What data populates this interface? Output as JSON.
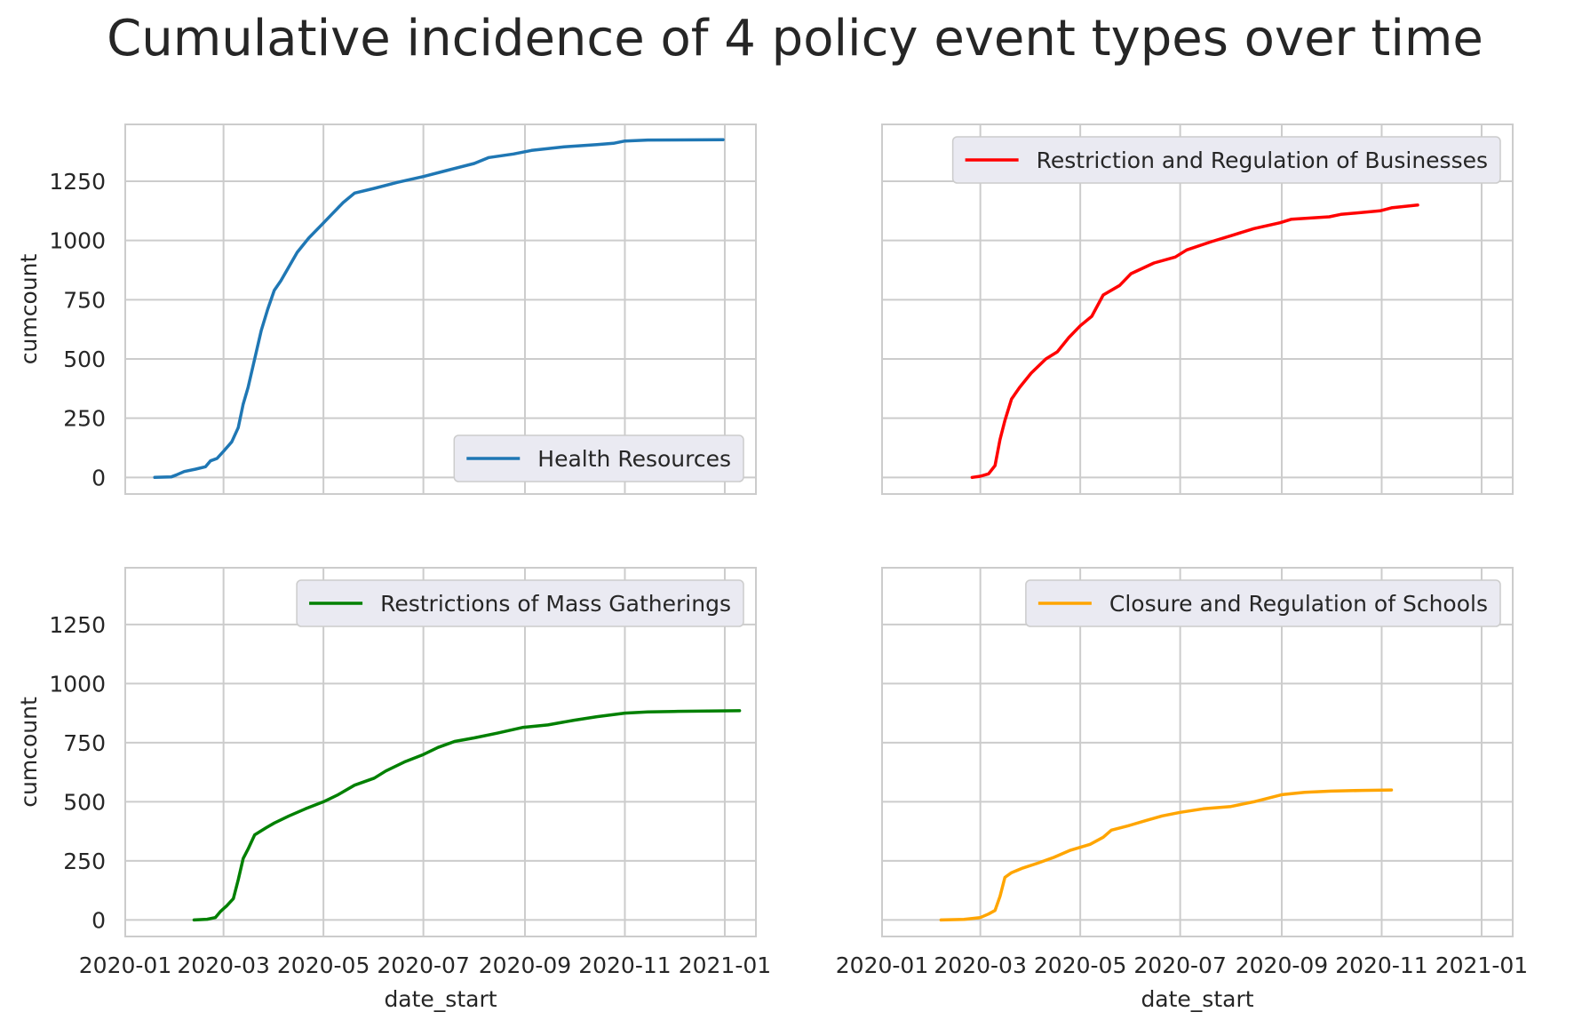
{
  "figure": {
    "title": "Cumulative incidence of 4 policy event types over time"
  },
  "chart_data": [
    {
      "type": "line",
      "position": "top-left",
      "ylabel": "cumcount",
      "xlabel": "",
      "legend": "lower-right",
      "grid": true,
      "color": "#1f77b4",
      "xlim": [
        "2020-01-01",
        "2021-01-20"
      ],
      "ylim": [
        -70,
        1490
      ],
      "xticks": [
        "2020-01",
        "2020-03",
        "2020-05",
        "2020-07",
        "2020-09",
        "2020-11",
        "2021-01"
      ],
      "yticks": [
        0,
        250,
        500,
        750,
        1000,
        1250
      ],
      "show_x_ticklabels": false,
      "show_y_ticklabels": true,
      "series": [
        {
          "name": "Health Resources",
          "points": [
            [
              "2020-01-19",
              0
            ],
            [
              "2020-01-29",
              2
            ],
            [
              "2020-02-01",
              10
            ],
            [
              "2020-02-06",
              25
            ],
            [
              "2020-02-13",
              35
            ],
            [
              "2020-02-19",
              45
            ],
            [
              "2020-02-22",
              70
            ],
            [
              "2020-02-26",
              80
            ],
            [
              "2020-03-01",
              110
            ],
            [
              "2020-03-06",
              150
            ],
            [
              "2020-03-10",
              210
            ],
            [
              "2020-03-13",
              310
            ],
            [
              "2020-03-16",
              380
            ],
            [
              "2020-03-20",
              500
            ],
            [
              "2020-03-24",
              620
            ],
            [
              "2020-03-28",
              710
            ],
            [
              "2020-04-01",
              790
            ],
            [
              "2020-04-05",
              830
            ],
            [
              "2020-04-10",
              890
            ],
            [
              "2020-04-15",
              950
            ],
            [
              "2020-04-22",
              1010
            ],
            [
              "2020-04-29",
              1060
            ],
            [
              "2020-05-06",
              1110
            ],
            [
              "2020-05-13",
              1160
            ],
            [
              "2020-05-20",
              1200
            ],
            [
              "2020-06-01",
              1220
            ],
            [
              "2020-06-15",
              1245
            ],
            [
              "2020-07-01",
              1270
            ],
            [
              "2020-07-15",
              1295
            ],
            [
              "2020-08-01",
              1325
            ],
            [
              "2020-08-10",
              1350
            ],
            [
              "2020-08-25",
              1365
            ],
            [
              "2020-09-05",
              1380
            ],
            [
              "2020-09-25",
              1395
            ],
            [
              "2020-10-15",
              1405
            ],
            [
              "2020-10-25",
              1410
            ],
            [
              "2020-11-01",
              1420
            ],
            [
              "2020-11-15",
              1424
            ],
            [
              "2020-12-31",
              1425
            ]
          ]
        }
      ]
    },
    {
      "type": "line",
      "position": "top-right",
      "ylabel": "",
      "xlabel": "",
      "legend": "upper-right",
      "grid": true,
      "color": "#ff0000",
      "xlim": [
        "2020-01-01",
        "2021-01-20"
      ],
      "ylim": [
        -70,
        1490
      ],
      "xticks": [
        "2020-01",
        "2020-03",
        "2020-05",
        "2020-07",
        "2020-09",
        "2020-11",
        "2021-01"
      ],
      "yticks": [
        0,
        250,
        500,
        750,
        1000,
        1250
      ],
      "show_x_ticklabels": false,
      "show_y_ticklabels": false,
      "series": [
        {
          "name": "Restriction and Regulation of Businesses",
          "points": [
            [
              "2020-02-25",
              0
            ],
            [
              "2020-03-01",
              5
            ],
            [
              "2020-03-06",
              15
            ],
            [
              "2020-03-10",
              50
            ],
            [
              "2020-03-13",
              160
            ],
            [
              "2020-03-16",
              240
            ],
            [
              "2020-03-20",
              330
            ],
            [
              "2020-03-25",
              380
            ],
            [
              "2020-04-01",
              440
            ],
            [
              "2020-04-10",
              500
            ],
            [
              "2020-04-17",
              530
            ],
            [
              "2020-04-24",
              590
            ],
            [
              "2020-05-01",
              640
            ],
            [
              "2020-05-08",
              680
            ],
            [
              "2020-05-15",
              770
            ],
            [
              "2020-05-25",
              810
            ],
            [
              "2020-06-01",
              860
            ],
            [
              "2020-06-15",
              905
            ],
            [
              "2020-06-28",
              930
            ],
            [
              "2020-07-05",
              960
            ],
            [
              "2020-07-20",
              995
            ],
            [
              "2020-08-01",
              1020
            ],
            [
              "2020-08-15",
              1050
            ],
            [
              "2020-08-31",
              1075
            ],
            [
              "2020-09-07",
              1090
            ],
            [
              "2020-09-30",
              1100
            ],
            [
              "2020-10-07",
              1110
            ],
            [
              "2020-10-31",
              1125
            ],
            [
              "2020-11-07",
              1138
            ],
            [
              "2020-11-23",
              1150
            ]
          ]
        }
      ]
    },
    {
      "type": "line",
      "position": "bottom-left",
      "ylabel": "cumcount",
      "xlabel": "date_start",
      "legend": "upper-right",
      "grid": true,
      "color": "#008000",
      "xlim": [
        "2020-01-01",
        "2021-01-20"
      ],
      "ylim": [
        -70,
        1490
      ],
      "xticks": [
        "2020-01",
        "2020-03",
        "2020-05",
        "2020-07",
        "2020-09",
        "2020-11",
        "2021-01"
      ],
      "yticks": [
        0,
        250,
        500,
        750,
        1000,
        1250
      ],
      "show_x_ticklabels": true,
      "show_y_ticklabels": true,
      "series": [
        {
          "name": "Restrictions of Mass Gatherings",
          "points": [
            [
              "2020-02-12",
              0
            ],
            [
              "2020-02-20",
              3
            ],
            [
              "2020-02-25",
              10
            ],
            [
              "2020-02-28",
              35
            ],
            [
              "2020-03-03",
              60
            ],
            [
              "2020-03-07",
              90
            ],
            [
              "2020-03-10",
              170
            ],
            [
              "2020-03-13",
              260
            ],
            [
              "2020-03-16",
              300
            ],
            [
              "2020-03-20",
              360
            ],
            [
              "2020-03-27",
              390
            ],
            [
              "2020-04-01",
              410
            ],
            [
              "2020-04-10",
              440
            ],
            [
              "2020-04-20",
              470
            ],
            [
              "2020-05-01",
              500
            ],
            [
              "2020-05-10",
              530
            ],
            [
              "2020-05-20",
              570
            ],
            [
              "2020-06-01",
              600
            ],
            [
              "2020-06-08",
              630
            ],
            [
              "2020-06-20",
              670
            ],
            [
              "2020-07-01",
              700
            ],
            [
              "2020-07-10",
              730
            ],
            [
              "2020-07-20",
              755
            ],
            [
              "2020-08-01",
              770
            ],
            [
              "2020-08-15",
              790
            ],
            [
              "2020-08-31",
              815
            ],
            [
              "2020-09-15",
              825
            ],
            [
              "2020-10-01",
              845
            ],
            [
              "2020-10-15",
              860
            ],
            [
              "2020-11-01",
              875
            ],
            [
              "2020-11-15",
              880
            ],
            [
              "2020-12-01",
              882
            ],
            [
              "2021-01-10",
              885
            ]
          ]
        }
      ]
    },
    {
      "type": "line",
      "position": "bottom-right",
      "ylabel": "",
      "xlabel": "date_start",
      "legend": "upper-right",
      "grid": true,
      "color": "#ffa500",
      "xlim": [
        "2020-01-01",
        "2021-01-20"
      ],
      "ylim": [
        -70,
        1490
      ],
      "xticks": [
        "2020-01",
        "2020-03",
        "2020-05",
        "2020-07",
        "2020-09",
        "2020-11",
        "2021-01"
      ],
      "yticks": [
        0,
        250,
        500,
        750,
        1000,
        1250
      ],
      "show_x_ticklabels": true,
      "show_y_ticklabels": false,
      "series": [
        {
          "name": "Closure and Regulation of Schools",
          "points": [
            [
              "2020-02-06",
              0
            ],
            [
              "2020-02-20",
              2
            ],
            [
              "2020-03-01",
              10
            ],
            [
              "2020-03-06",
              25
            ],
            [
              "2020-03-10",
              40
            ],
            [
              "2020-03-13",
              100
            ],
            [
              "2020-03-16",
              180
            ],
            [
              "2020-03-20",
              200
            ],
            [
              "2020-03-27",
              220
            ],
            [
              "2020-04-05",
              240
            ],
            [
              "2020-04-15",
              265
            ],
            [
              "2020-04-25",
              295
            ],
            [
              "2020-05-07",
              320
            ],
            [
              "2020-05-15",
              350
            ],
            [
              "2020-05-20",
              380
            ],
            [
              "2020-05-31",
              400
            ],
            [
              "2020-06-10",
              420
            ],
            [
              "2020-06-20",
              440
            ],
            [
              "2020-07-01",
              455
            ],
            [
              "2020-07-15",
              470
            ],
            [
              "2020-08-01",
              480
            ],
            [
              "2020-08-15",
              500
            ],
            [
              "2020-09-01",
              530
            ],
            [
              "2020-09-15",
              540
            ],
            [
              "2020-10-01",
              545
            ],
            [
              "2020-10-20",
              548
            ],
            [
              "2020-11-07",
              550
            ]
          ]
        }
      ]
    }
  ]
}
